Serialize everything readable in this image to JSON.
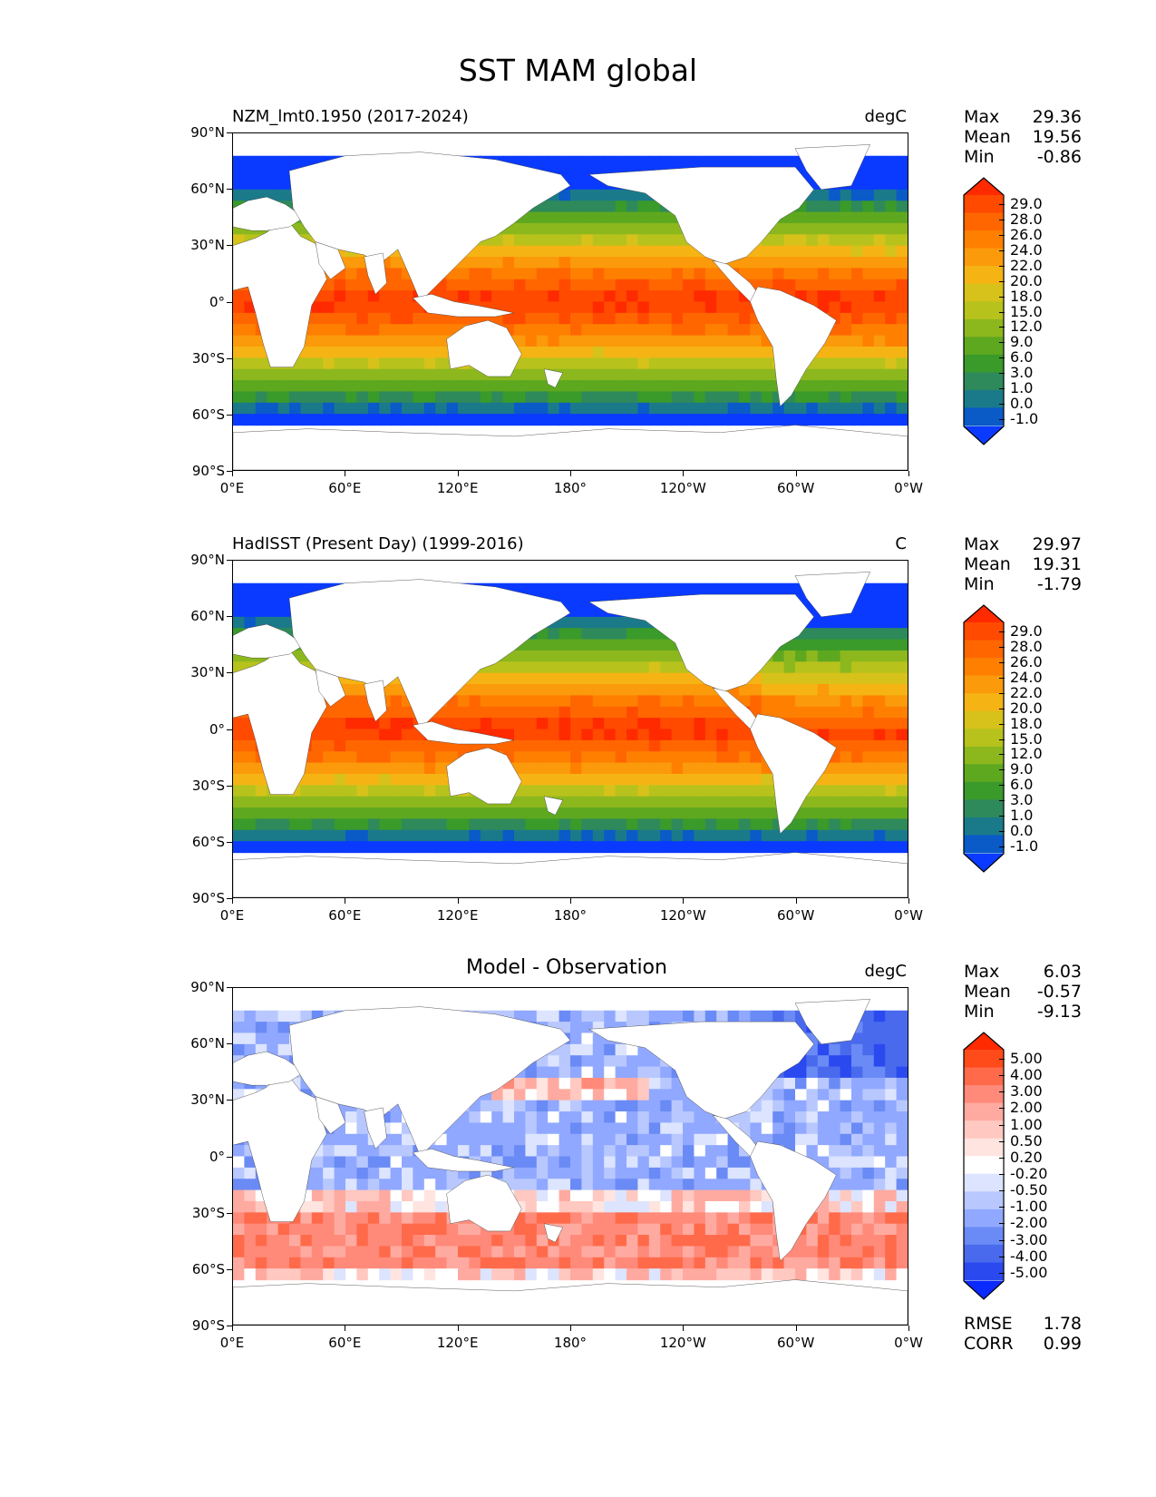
{
  "title": "SST MAM global",
  "lat_labels": [
    "90°N",
    "60°N",
    "30°N",
    "0°",
    "30°S",
    "60°S",
    "90°S"
  ],
  "lon_labels": [
    "0°E",
    "60°E",
    "120°E",
    "180°",
    "120°W",
    "60°W",
    "0°W"
  ],
  "panels": [
    {
      "title": "NZM_lmt0.1950 (2017-2024)",
      "units": "degC",
      "stats": [
        {
          "label": "Max",
          "value": "29.36"
        },
        {
          "label": "Mean",
          "value": "19.56"
        },
        {
          "label": "Min",
          "value": "-0.86"
        }
      ],
      "colorbar_type": "sst",
      "cb_labels": [
        "29.0",
        "28.0",
        "26.0",
        "24.0",
        "22.0",
        "20.0",
        "18.0",
        "15.0",
        "12.0",
        "9.0",
        "6.0",
        "3.0",
        "1.0",
        "0.0",
        "-1.0"
      ]
    },
    {
      "title": "HadISST (Present Day) (1999-2016)",
      "units": "C",
      "stats": [
        {
          "label": "Max",
          "value": "29.97"
        },
        {
          "label": "Mean",
          "value": "19.31"
        },
        {
          "label": "Min",
          "value": "-1.79"
        }
      ],
      "colorbar_type": "sst",
      "cb_labels": [
        "29.0",
        "28.0",
        "26.0",
        "24.0",
        "22.0",
        "20.0",
        "18.0",
        "15.0",
        "12.0",
        "9.0",
        "6.0",
        "3.0",
        "1.0",
        "0.0",
        "-1.0"
      ]
    },
    {
      "title": "Model - Observation",
      "units": "degC",
      "stats": [
        {
          "label": "Max",
          "value": "6.03"
        },
        {
          "label": "Mean",
          "value": "-0.57"
        },
        {
          "label": "Min",
          "value": "-9.13"
        }
      ],
      "colorbar_type": "diff",
      "cb_labels": [
        "5.00",
        "4.00",
        "3.00",
        "2.00",
        "1.00",
        "0.50",
        "0.20",
        "-0.20",
        "-0.50",
        "-1.00",
        "-2.00",
        "-3.00",
        "-4.00",
        "-5.00"
      ],
      "metrics": [
        {
          "label": "RMSE",
          "value": "1.78"
        },
        {
          "label": "CORR",
          "value": "0.99"
        }
      ]
    }
  ],
  "colors": {
    "sst": [
      "#ff2a00",
      "#ff4a00",
      "#ff6600",
      "#ff8000",
      "#fb9a0a",
      "#f5b414",
      "#d6c21a",
      "#b8c21c",
      "#8cb81e",
      "#5ea820",
      "#3a9a2a",
      "#2e8a5a",
      "#1a7a8a",
      "#0a5ac8",
      "#0a3aff"
    ],
    "diff": [
      "#ff2a00",
      "#ff4a1a",
      "#ff6a4a",
      "#ff8a7a",
      "#ffaaa0",
      "#ffc8c0",
      "#ffe4e0",
      "#ffffff",
      "#dce4ff",
      "#b8c8ff",
      "#90a8ff",
      "#6a8af5",
      "#4a6aee",
      "#2a4af0",
      "#0a2aff"
    ],
    "land": "#ffffff",
    "coast": "#333333"
  }
}
